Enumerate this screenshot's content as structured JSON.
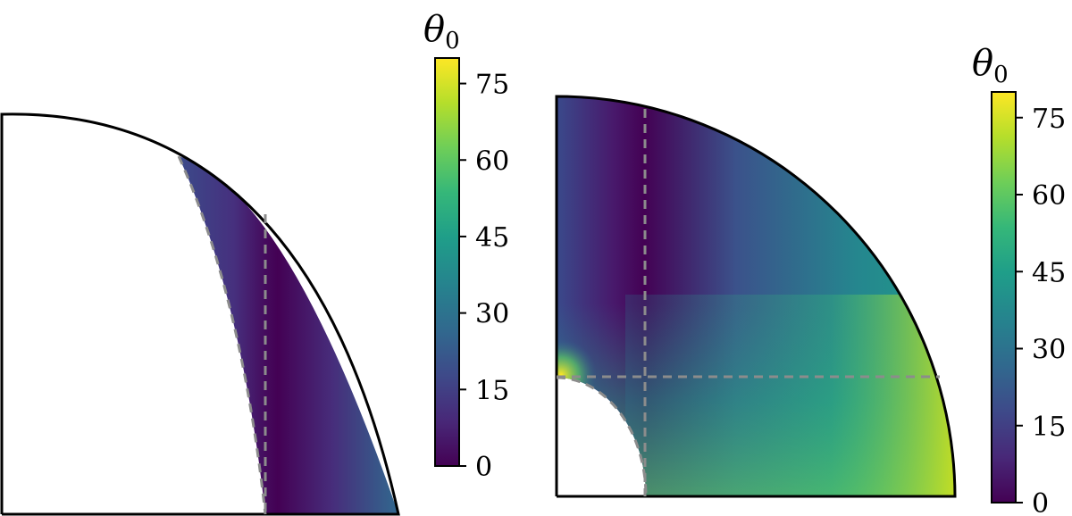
{
  "chart_data": [
    {
      "type": "heatmap",
      "description_kind": "quarter-annulus",
      "colorbar": {
        "label_symbol": "θ",
        "label_subscript": "0",
        "range": [
          0,
          80
        ],
        "ticks": [
          0,
          15,
          30,
          45,
          60,
          75
        ],
        "colormap": "viridis"
      },
      "field_range": [
        0,
        20
      ],
      "dashed_lines": [
        "inner-boundary-curve",
        "vertical-line"
      ]
    },
    {
      "type": "heatmap",
      "description_kind": "quarter-disk-with-hole",
      "colorbar": {
        "label_symbol": "θ",
        "label_subscript": "0",
        "range": [
          0,
          80
        ],
        "ticks": [
          0,
          15,
          30,
          45,
          60,
          75
        ],
        "colormap": "viridis"
      },
      "field_range": [
        0,
        80
      ],
      "dashed_lines": [
        "hole-boundary-arc",
        "vertical-line",
        "horizontal-line"
      ]
    }
  ],
  "colors": {
    "viridis": [
      "#440154",
      "#482878",
      "#3e4989",
      "#31688e",
      "#26828e",
      "#1f9e89",
      "#35b779",
      "#6ece58",
      "#b5de2b",
      "#fde725"
    ],
    "dash": "#8c8c8c",
    "outline": "#000000"
  }
}
